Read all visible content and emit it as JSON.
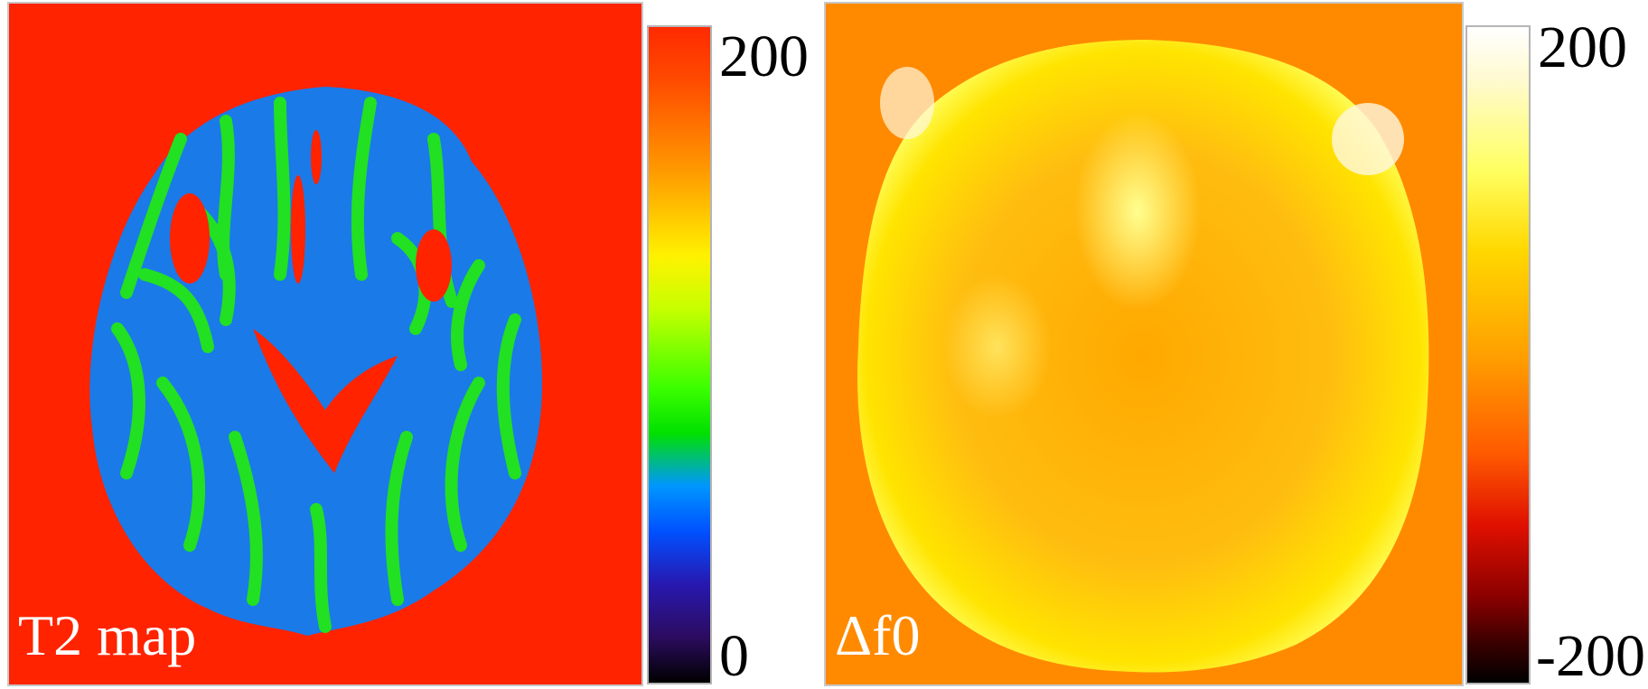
{
  "left_panel": {
    "label": "T2 map",
    "colorbar": {
      "max_label": "200",
      "min_label": "0"
    }
  },
  "right_panel": {
    "label": "Δf0",
    "colorbar": {
      "max_label": "200",
      "min_label": "-200"
    }
  },
  "colors": {
    "t2_background": "#ff2300",
    "t2_tissue_blue": "#1a7ae8",
    "t2_tissue_green": "#22e022",
    "df0_background": "#ff8a00",
    "df0_head": "#ffb800",
    "df0_rim": "#ffe600"
  }
}
